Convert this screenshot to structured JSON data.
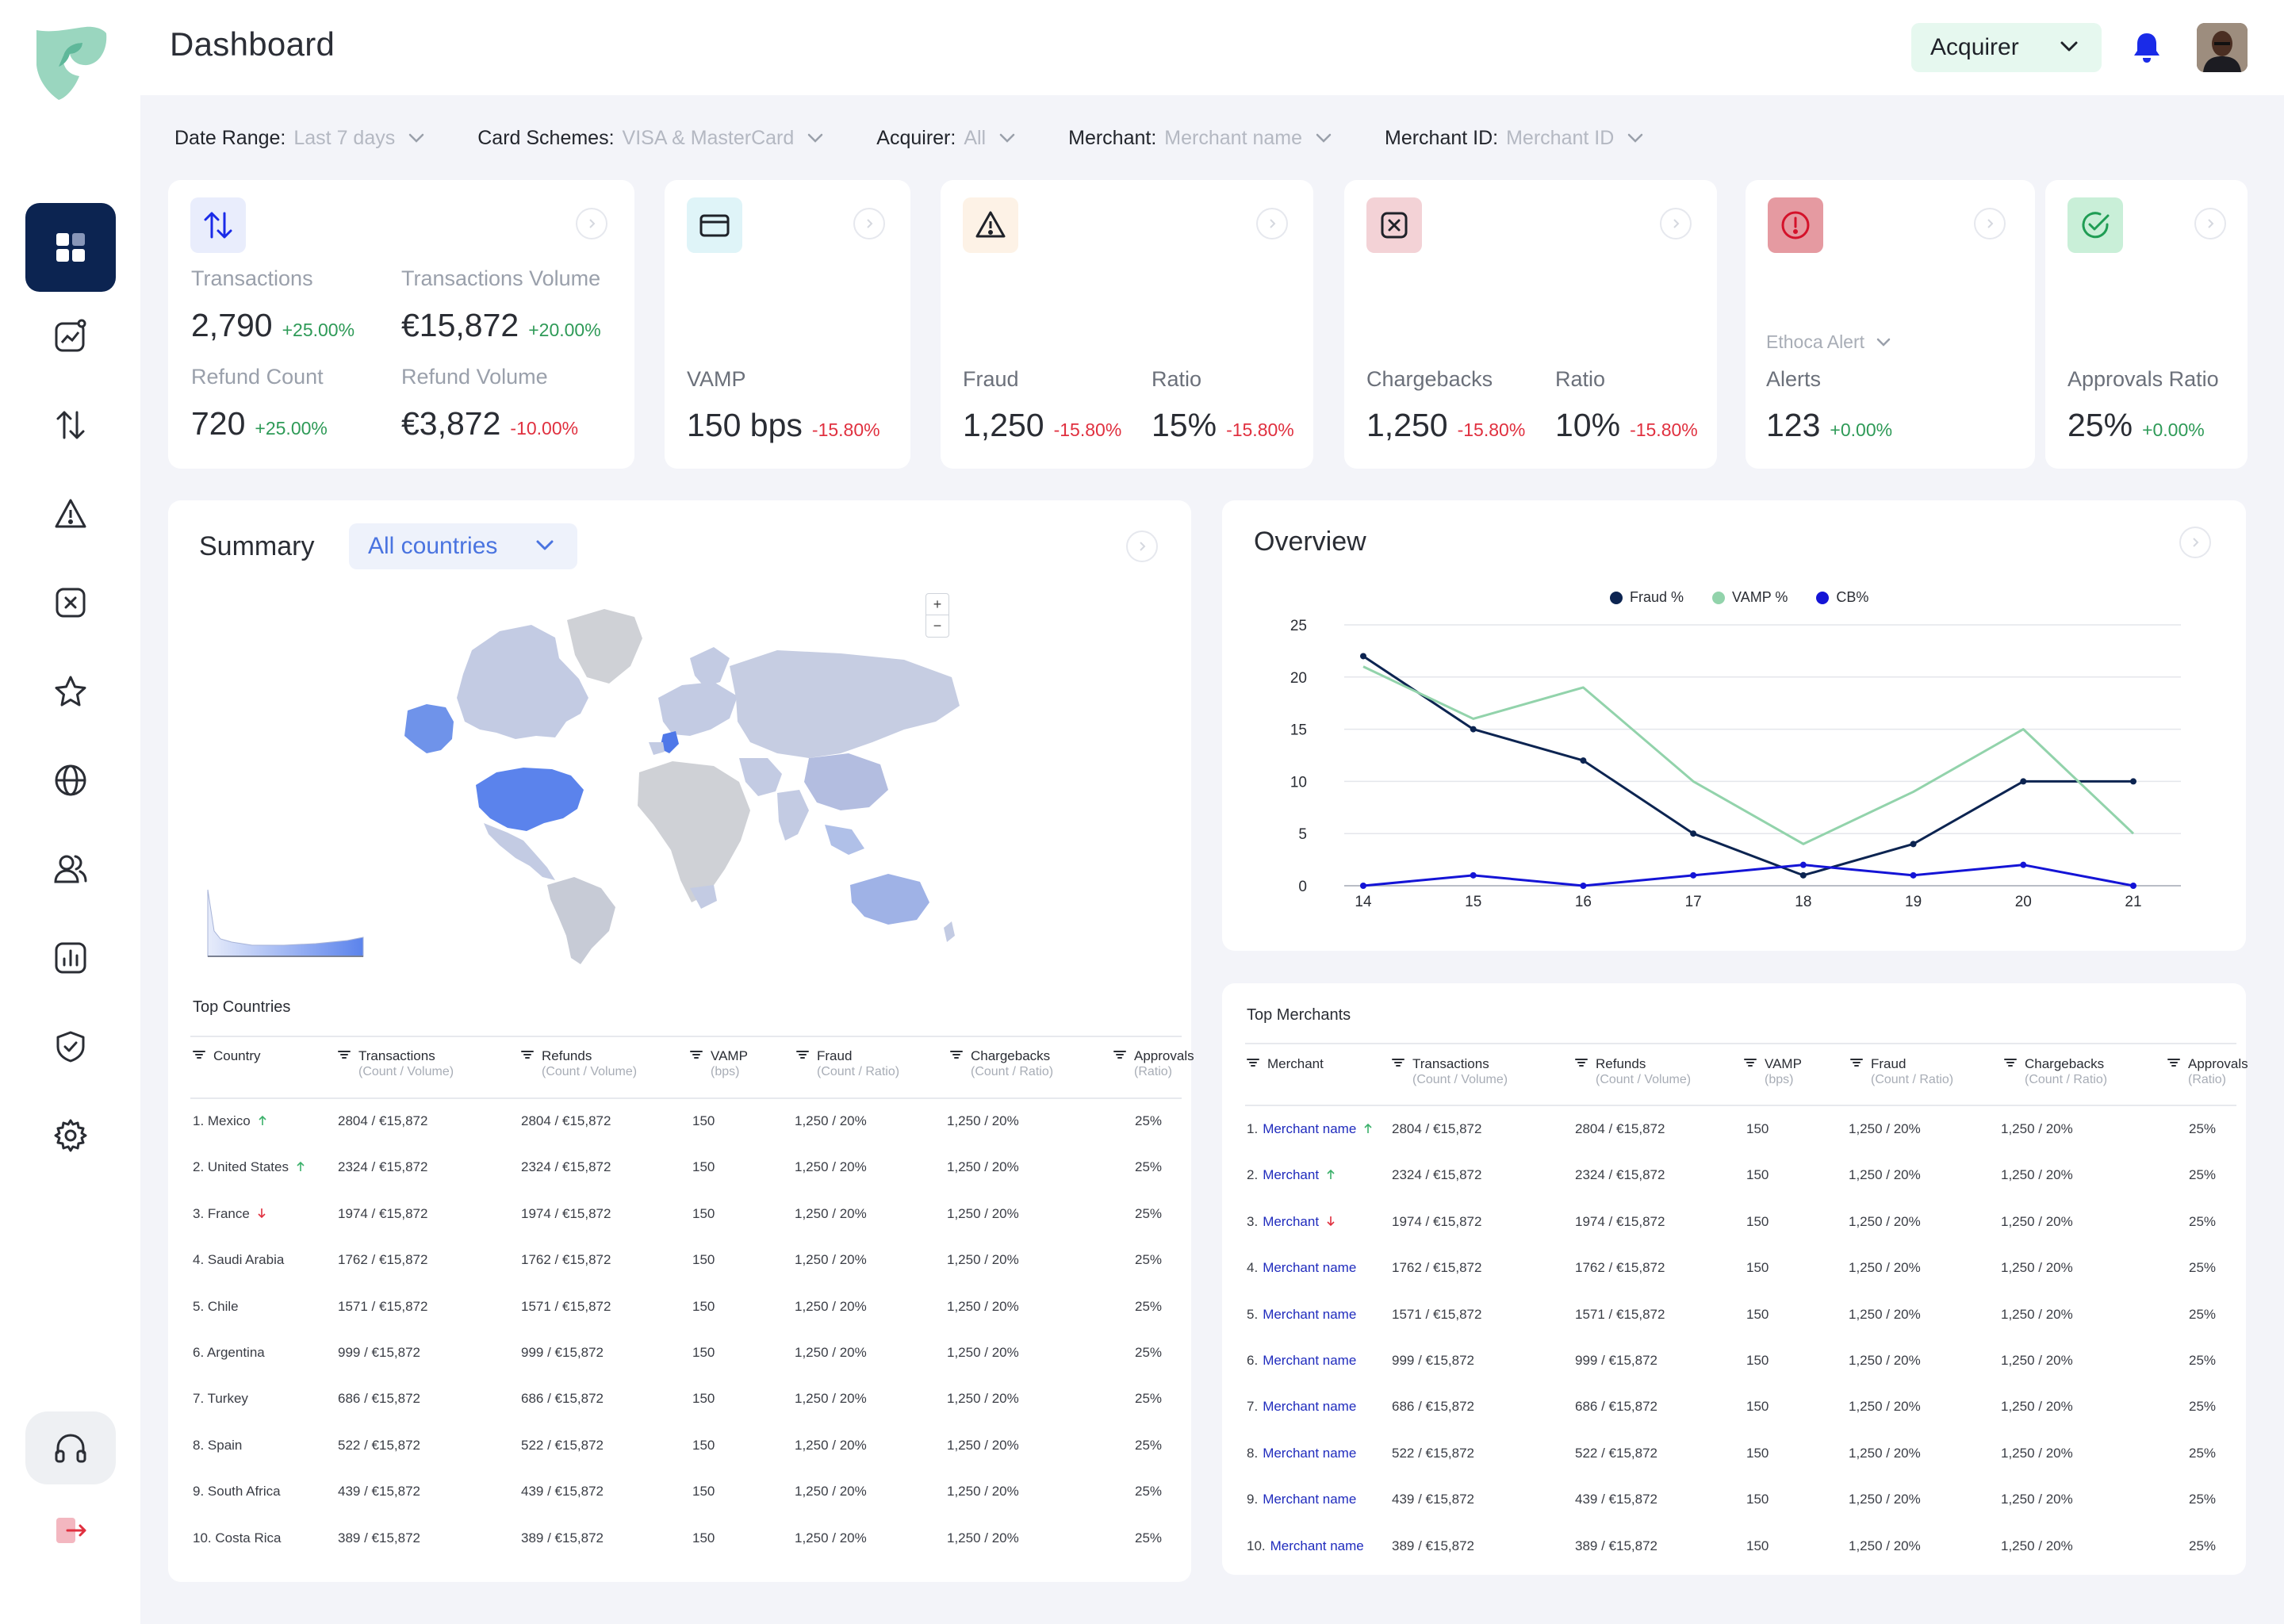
{
  "header": {
    "title": "Dashboard",
    "role": "Acquirer"
  },
  "nav": {
    "items": [
      "dashboard-icon",
      "analytics-icon",
      "transactions-icon",
      "alert-triangle-icon",
      "x-square-icon",
      "star-icon",
      "globe-icon",
      "users-icon",
      "bar-chart-icon",
      "shield-check-icon",
      "settings-icon"
    ],
    "bottom": [
      "headset-icon",
      "logout-icon"
    ]
  },
  "filters": [
    {
      "label": "Date Range:",
      "value": "Last 7 days"
    },
    {
      "label": "Card Schemes:",
      "value": "VISA & MasterCard"
    },
    {
      "label": "Acquirer:",
      "value": "All"
    },
    {
      "label": "Merchant:",
      "value": "Merchant name"
    },
    {
      "label": "Merchant ID:",
      "value": "Merchant ID"
    }
  ],
  "cards": {
    "transactions": {
      "icon": "transfer-arrows-icon",
      "count_label": "Transactions",
      "count_value": "2,790",
      "count_delta": "+25.00%",
      "volume_label": "Transactions Volume",
      "volume_value": "€15,872",
      "volume_delta": "+20.00%",
      "refund_count_label": "Refund Count",
      "refund_count_value": "720",
      "refund_count_delta": "+25.00%",
      "refund_volume_label": "Refund Volume",
      "refund_volume_value": "€3,872",
      "refund_volume_delta": "-10.00%"
    },
    "vamp": {
      "icon": "credit-card-icon",
      "label": "VAMP",
      "value": "150 bps",
      "delta": "-15.80%"
    },
    "fraud": {
      "icon": "warning-icon",
      "label": "Fraud",
      "value": "1,250",
      "delta": "-15.80%",
      "ratio_label": "Ratio",
      "ratio_value": "15%",
      "ratio_delta": "-15.80%"
    },
    "chargebacks": {
      "icon": "x-box-icon",
      "label": "Chargebacks",
      "value": "1,250",
      "delta": "-15.80%",
      "ratio_label": "Ratio",
      "ratio_value": "10%",
      "ratio_delta": "-15.80%"
    },
    "alerts": {
      "icon": "alert-circle-icon",
      "source": "Ethoca Alert",
      "label": "Alerts",
      "value": "123",
      "delta": "+0.00%"
    },
    "approvals": {
      "icon": "check-circle-icon",
      "label": "Approvals Ratio",
      "value": "25%",
      "delta": "+0.00%"
    }
  },
  "summary": {
    "title": "Summary",
    "country_filter": "All countries",
    "zoom_in": "+",
    "zoom_out": "−",
    "table_title": "Top Countries",
    "columns": [
      {
        "label": "Country",
        "sub": ""
      },
      {
        "label": "Transactions",
        "sub": "(Count / Volume)"
      },
      {
        "label": "Refunds",
        "sub": "(Count / Volume)"
      },
      {
        "label": "VAMP",
        "sub": "(bps)"
      },
      {
        "label": "Fraud",
        "sub": "(Count / Ratio)"
      },
      {
        "label": "Chargebacks",
        "sub": "(Count / Ratio)"
      },
      {
        "label": "Approvals",
        "sub": "(Ratio)"
      }
    ],
    "rows": [
      {
        "name": "1. Mexico",
        "trend": "up",
        "tx": "2804 / €15,872",
        "ref": "2804 / €15,872",
        "vamp": "150",
        "fraud": "1,250 / 20%",
        "cb": "1,250 / 20%",
        "appr": "25%"
      },
      {
        "name": "2. United States",
        "trend": "up",
        "tx": "2324 / €15,872",
        "ref": "2324 / €15,872",
        "vamp": "150",
        "fraud": "1,250 / 20%",
        "cb": "1,250 / 20%",
        "appr": "25%"
      },
      {
        "name": "3. France",
        "trend": "down",
        "tx": "1974 / €15,872",
        "ref": "1974 / €15,872",
        "vamp": "150",
        "fraud": "1,250 / 20%",
        "cb": "1,250 / 20%",
        "appr": "25%"
      },
      {
        "name": "4. Saudi Arabia",
        "trend": "",
        "tx": "1762 / €15,872",
        "ref": "1762 / €15,872",
        "vamp": "150",
        "fraud": "1,250 / 20%",
        "cb": "1,250 / 20%",
        "appr": "25%"
      },
      {
        "name": "5. Chile",
        "trend": "",
        "tx": "1571 / €15,872",
        "ref": "1571 / €15,872",
        "vamp": "150",
        "fraud": "1,250 / 20%",
        "cb": "1,250 / 20%",
        "appr": "25%"
      },
      {
        "name": "6. Argentina",
        "trend": "",
        "tx": "999 / €15,872",
        "ref": "999 / €15,872",
        "vamp": "150",
        "fraud": "1,250 / 20%",
        "cb": "1,250 / 20%",
        "appr": "25%"
      },
      {
        "name": "7. Turkey",
        "trend": "",
        "tx": "686 / €15,872",
        "ref": "686 / €15,872",
        "vamp": "150",
        "fraud": "1,250 / 20%",
        "cb": "1,250 / 20%",
        "appr": "25%"
      },
      {
        "name": "8. Spain",
        "trend": "",
        "tx": "522 / €15,872",
        "ref": "522 / €15,872",
        "vamp": "150",
        "fraud": "1,250 / 20%",
        "cb": "1,250 / 20%",
        "appr": "25%"
      },
      {
        "name": "9. South Africa",
        "trend": "",
        "tx": "439 / €15,872",
        "ref": "439 / €15,872",
        "vamp": "150",
        "fraud": "1,250 / 20%",
        "cb": "1,250 / 20%",
        "appr": "25%"
      },
      {
        "name": "10. Costa Rica",
        "trend": "",
        "tx": "389 / €15,872",
        "ref": "389 / €15,872",
        "vamp": "150",
        "fraud": "1,250 / 20%",
        "cb": "1,250 / 20%",
        "appr": "25%"
      }
    ]
  },
  "overview": {
    "title": "Overview",
    "table_title": "Top Merchants",
    "columns": [
      {
        "label": "Merchant",
        "sub": ""
      },
      {
        "label": "Transactions",
        "sub": "(Count / Volume)"
      },
      {
        "label": "Refunds",
        "sub": "(Count / Volume)"
      },
      {
        "label": "VAMP",
        "sub": "(bps)"
      },
      {
        "label": "Fraud",
        "sub": "(Count / Ratio)"
      },
      {
        "label": "Chargebacks",
        "sub": "(Count / Ratio)"
      },
      {
        "label": "Approvals",
        "sub": "(Ratio)"
      }
    ],
    "rows": [
      {
        "rank": "1.",
        "name": "Merchant name",
        "trend": "up",
        "tx": "2804 / €15,872",
        "ref": "2804 / €15,872",
        "vamp": "150",
        "fraud": "1,250 / 20%",
        "cb": "1,250 / 20%",
        "appr": "25%"
      },
      {
        "rank": "2.",
        "name": "Merchant",
        "trend": "up",
        "tx": "2324 / €15,872",
        "ref": "2324 / €15,872",
        "vamp": "150",
        "fraud": "1,250 / 20%",
        "cb": "1,250 / 20%",
        "appr": "25%"
      },
      {
        "rank": "3.",
        "name": "Merchant",
        "trend": "down",
        "tx": "1974 / €15,872",
        "ref": "1974 / €15,872",
        "vamp": "150",
        "fraud": "1,250 / 20%",
        "cb": "1,250 / 20%",
        "appr": "25%"
      },
      {
        "rank": "4.",
        "name": "Merchant name",
        "trend": "",
        "tx": "1762 / €15,872",
        "ref": "1762 / €15,872",
        "vamp": "150",
        "fraud": "1,250 / 20%",
        "cb": "1,250 / 20%",
        "appr": "25%"
      },
      {
        "rank": "5.",
        "name": "Merchant name",
        "trend": "",
        "tx": "1571 / €15,872",
        "ref": "1571 / €15,872",
        "vamp": "150",
        "fraud": "1,250 / 20%",
        "cb": "1,250 / 20%",
        "appr": "25%"
      },
      {
        "rank": "6.",
        "name": "Merchant name",
        "trend": "",
        "tx": "999 / €15,872",
        "ref": "999 / €15,872",
        "vamp": "150",
        "fraud": "1,250 / 20%",
        "cb": "1,250 / 20%",
        "appr": "25%"
      },
      {
        "rank": "7.",
        "name": "Merchant name",
        "trend": "",
        "tx": "686 / €15,872",
        "ref": "686 / €15,872",
        "vamp": "150",
        "fraud": "1,250 / 20%",
        "cb": "1,250 / 20%",
        "appr": "25%"
      },
      {
        "rank": "8.",
        "name": "Merchant name",
        "trend": "",
        "tx": "522 / €15,872",
        "ref": "522 / €15,872",
        "vamp": "150",
        "fraud": "1,250 / 20%",
        "cb": "1,250 / 20%",
        "appr": "25%"
      },
      {
        "rank": "9.",
        "name": "Merchant name",
        "trend": "",
        "tx": "439 / €15,872",
        "ref": "439 / €15,872",
        "vamp": "150",
        "fraud": "1,250 / 20%",
        "cb": "1,250 / 20%",
        "appr": "25%"
      },
      {
        "rank": "10.",
        "name": "Merchant name",
        "trend": "",
        "tx": "389 / €15,872",
        "ref": "389 / €15,872",
        "vamp": "150",
        "fraud": "1,250 / 20%",
        "cb": "1,250 / 20%",
        "appr": "25%"
      }
    ]
  },
  "chart_data": {
    "type": "line",
    "title": "",
    "xlabel": "",
    "ylabel": "",
    "x": [
      14,
      15,
      16,
      17,
      18,
      19,
      20,
      21
    ],
    "ylim": [
      0,
      25
    ],
    "yticks": [
      0,
      5,
      10,
      15,
      20,
      25
    ],
    "grid": true,
    "legend_position": "top-center",
    "series": [
      {
        "name": "Fraud %",
        "color": "#0c2451",
        "values": [
          22,
          15,
          12,
          5,
          1,
          4,
          10,
          10
        ],
        "markers": true
      },
      {
        "name": "VAMP %",
        "color": "#92d3ab",
        "values": [
          21,
          16,
          19,
          10,
          4,
          9,
          15,
          5
        ],
        "markers": false
      },
      {
        "name": "CB%",
        "color": "#1414d6",
        "values": [
          0,
          1,
          0,
          1,
          2,
          1,
          2,
          0
        ],
        "markers": true
      }
    ]
  },
  "colors": {
    "accent": "#0c2451",
    "positive": "#2e9a57",
    "negative": "#e0303f",
    "link": "#1f2bbd"
  }
}
